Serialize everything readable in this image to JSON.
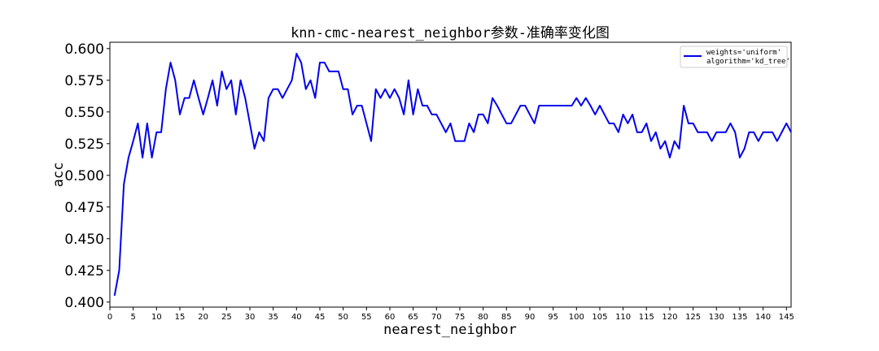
{
  "chart_data": {
    "type": "line",
    "title": "knn-cmc-nearest_neighbor参数-准确率变化图",
    "xlabel": "nearest_neighbor",
    "ylabel": "acc",
    "xlim": [
      0,
      146
    ],
    "ylim": [
      0.396,
      0.605
    ],
    "xticks": [
      0,
      5,
      10,
      15,
      20,
      25,
      30,
      35,
      40,
      45,
      50,
      55,
      60,
      65,
      70,
      75,
      80,
      85,
      90,
      95,
      100,
      105,
      110,
      115,
      120,
      125,
      130,
      135,
      140,
      145
    ],
    "yticks": [
      0.4,
      0.425,
      0.45,
      0.475,
      0.5,
      0.525,
      0.55,
      0.575,
      0.6
    ],
    "ytick_labels": [
      "0.400",
      "0.425",
      "0.450",
      "0.475",
      "0.500",
      "0.525",
      "0.550",
      "0.575",
      "0.600"
    ],
    "grid": false,
    "legend_position": "top-right",
    "legend": [
      "weights='uniform'",
      "algorithm='kd_tree'"
    ],
    "series": [
      {
        "color": "#0000ee",
        "x": [
          1,
          2,
          3,
          4,
          5,
          6,
          7,
          8,
          9,
          10,
          11,
          12,
          13,
          14,
          15,
          16,
          17,
          18,
          19,
          20,
          21,
          22,
          23,
          24,
          25,
          26,
          27,
          28,
          29,
          30,
          31,
          32,
          33,
          34,
          35,
          36,
          37,
          38,
          39,
          40,
          41,
          42,
          43,
          44,
          45,
          46,
          47,
          48,
          49,
          50,
          51,
          52,
          53,
          54,
          55,
          56,
          57,
          58,
          59,
          60,
          61,
          62,
          63,
          64,
          65,
          66,
          67,
          68,
          69,
          70,
          71,
          72,
          73,
          74,
          75,
          76,
          77,
          78,
          79,
          80,
          81,
          82,
          83,
          84,
          85,
          86,
          87,
          88,
          89,
          90,
          91,
          92,
          93,
          94,
          95,
          96,
          97,
          98,
          99,
          100,
          101,
          102,
          103,
          104,
          105,
          106,
          107,
          108,
          109,
          110,
          111,
          112,
          113,
          114,
          115,
          116,
          117,
          118,
          119,
          120,
          121,
          122,
          123,
          124,
          125,
          126,
          127,
          128,
          129,
          130,
          131,
          132,
          133,
          134,
          135,
          136,
          137,
          138,
          139,
          140,
          141,
          142,
          143,
          144,
          145,
          146
        ],
        "values": [
          0.405,
          0.425,
          0.493,
          0.514,
          0.527,
          0.541,
          0.514,
          0.541,
          0.514,
          0.534,
          0.534,
          0.568,
          0.589,
          0.575,
          0.548,
          0.561,
          0.561,
          0.575,
          0.561,
          0.548,
          0.561,
          0.575,
          0.555,
          0.582,
          0.568,
          0.575,
          0.548,
          0.575,
          0.561,
          0.541,
          0.521,
          0.534,
          0.527,
          0.561,
          0.568,
          0.568,
          0.561,
          0.568,
          0.575,
          0.596,
          0.589,
          0.568,
          0.575,
          0.561,
          0.589,
          0.589,
          0.582,
          0.582,
          0.582,
          0.568,
          0.568,
          0.548,
          0.555,
          0.555,
          0.541,
          0.527,
          0.568,
          0.561,
          0.568,
          0.561,
          0.568,
          0.561,
          0.548,
          0.575,
          0.548,
          0.568,
          0.555,
          0.555,
          0.548,
          0.548,
          0.541,
          0.534,
          0.541,
          0.527,
          0.527,
          0.527,
          0.541,
          0.534,
          0.548,
          0.548,
          0.541,
          0.561,
          0.555,
          0.548,
          0.541,
          0.541,
          0.548,
          0.555,
          0.555,
          0.548,
          0.541,
          0.555,
          0.555,
          0.555,
          0.555,
          0.555,
          0.555,
          0.555,
          0.555,
          0.561,
          0.555,
          0.561,
          0.555,
          0.548,
          0.555,
          0.548,
          0.541,
          0.541,
          0.534,
          0.548,
          0.541,
          0.548,
          0.534,
          0.534,
          0.541,
          0.527,
          0.534,
          0.521,
          0.527,
          0.514,
          0.527,
          0.521,
          0.555,
          0.541,
          0.541,
          0.534,
          0.534,
          0.534,
          0.527,
          0.534,
          0.534,
          0.534,
          0.541,
          0.534,
          0.514,
          0.521,
          0.534,
          0.534,
          0.527,
          0.534,
          0.534,
          0.534,
          0.527,
          0.534,
          0.541,
          0.534
        ]
      }
    ]
  }
}
